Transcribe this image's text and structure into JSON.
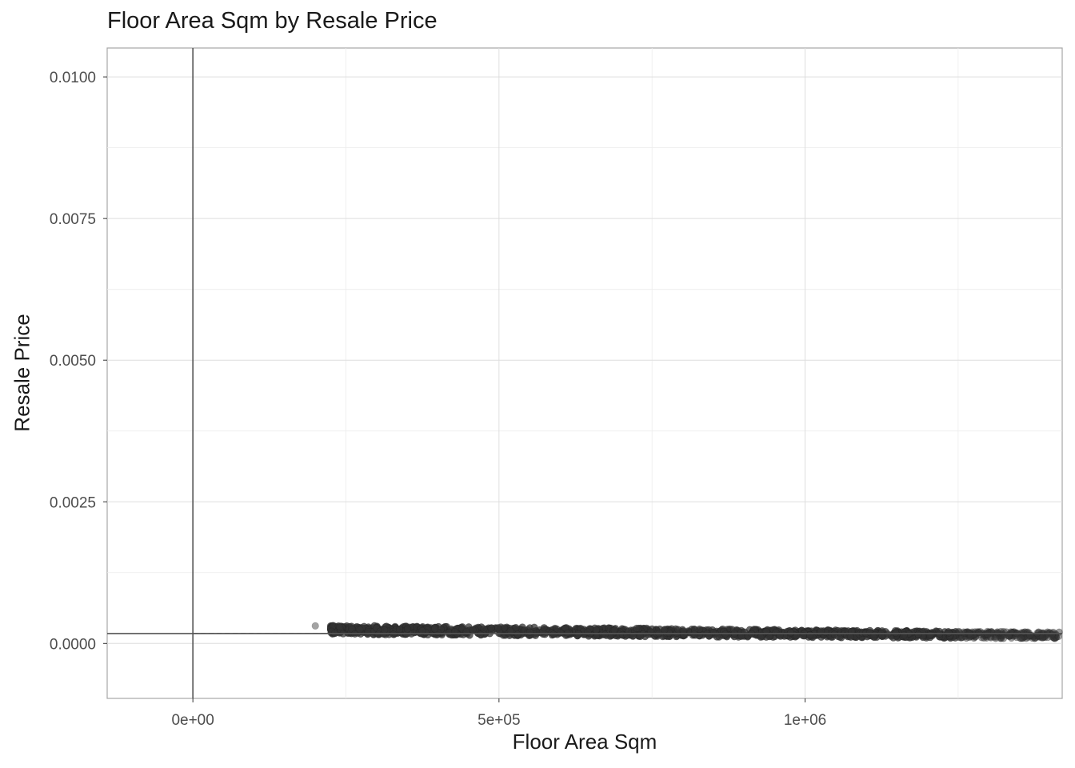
{
  "chart_data": {
    "type": "scatter",
    "title": "Floor Area Sqm by Resale Price",
    "xlabel": "Floor Area Sqm",
    "ylabel": "Resale Price",
    "xlim": [
      -140000,
      1420000
    ],
    "ylim": [
      -0.00097,
      0.01051
    ],
    "x_ticks": [
      {
        "value": 0,
        "label": "0e+00"
      },
      {
        "value": 500000,
        "label": "5e+05"
      },
      {
        "value": 1000000,
        "label": "1e+06"
      }
    ],
    "y_ticks": [
      {
        "value": 0.0,
        "label": "0.0000"
      },
      {
        "value": 0.0025,
        "label": "0.0025"
      },
      {
        "value": 0.005,
        "label": "0.0050"
      },
      {
        "value": 0.0075,
        "label": "0.0075"
      },
      {
        "value": 0.01,
        "label": "0.0100"
      }
    ],
    "grid": true,
    "reference_lines": {
      "horizontal_y": 0.000175,
      "vertical_x": 0
    },
    "points": {
      "x_range": [
        200000,
        1415000
      ],
      "y_upper_start": 0.00032,
      "y_upper_end": 0.0002,
      "y_lower_start": 0.00017,
      "y_lower_end": 8.5e-05,
      "marker_color": "#333333",
      "marker_opacity": 0.55
    },
    "funnel": {
      "center": 0.000175,
      "solid_spread": 1.2e-05,
      "dashed_spread": 6.5e-06,
      "x_start": 8,
      "x_end": 1420000
    }
  }
}
